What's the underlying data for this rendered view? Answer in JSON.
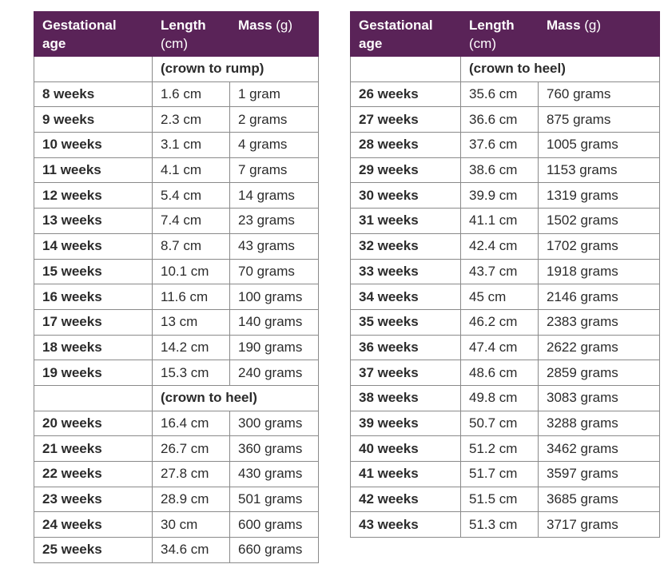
{
  "header": {
    "col1_line1": "Gestational",
    "col1_line2": "age",
    "col2_line1": "Length",
    "col2_line2": "(cm)",
    "col3_label": "Mass",
    "col3_unit": "(g)"
  },
  "left_table": {
    "sections": [
      {
        "label": "(crown to rump)",
        "rows": [
          {
            "age": "8 weeks",
            "length": "1.6 cm",
            "mass": "1 gram"
          },
          {
            "age": "9 weeks",
            "length": "2.3 cm",
            "mass": "2 grams"
          },
          {
            "age": "10 weeks",
            "length": "3.1 cm",
            "mass": "4 grams"
          },
          {
            "age": "11 weeks",
            "length": "4.1 cm",
            "mass": "7 grams"
          },
          {
            "age": "12 weeks",
            "length": "5.4 cm",
            "mass": "14 grams"
          },
          {
            "age": "13 weeks",
            "length": "7.4 cm",
            "mass": "23 grams"
          },
          {
            "age": "14 weeks",
            "length": "8.7 cm",
            "mass": "43 grams"
          },
          {
            "age": "15 weeks",
            "length": "10.1 cm",
            "mass": "70 grams"
          },
          {
            "age": "16 weeks",
            "length": "11.6 cm",
            "mass": "100 grams"
          },
          {
            "age": "17 weeks",
            "length": "13 cm",
            "mass": "140 grams"
          },
          {
            "age": "18 weeks",
            "length": "14.2 cm",
            "mass": "190 grams"
          },
          {
            "age": "19 weeks",
            "length": "15.3 cm",
            "mass": "240 grams"
          }
        ]
      },
      {
        "label": "(crown to heel)",
        "rows": [
          {
            "age": "20 weeks",
            "length": "16.4 cm",
            "mass": "300 grams"
          },
          {
            "age": "21 weeks",
            "length": "26.7 cm",
            "mass": "360 grams"
          },
          {
            "age": "22 weeks",
            "length": "27.8 cm",
            "mass": "430 grams"
          },
          {
            "age": "23 weeks",
            "length": "28.9 cm",
            "mass": "501 grams"
          },
          {
            "age": "24 weeks",
            "length": "30 cm",
            "mass": "600 grams"
          },
          {
            "age": "25 weeks",
            "length": "34.6 cm",
            "mass": "660 grams"
          }
        ]
      }
    ]
  },
  "right_table": {
    "sections": [
      {
        "label": "(crown to heel)",
        "rows": [
          {
            "age": "26 weeks",
            "length": "35.6 cm",
            "mass": "760 grams"
          },
          {
            "age": "27 weeks",
            "length": "36.6 cm",
            "mass": "875 grams"
          },
          {
            "age": "28 weeks",
            "length": "37.6 cm",
            "mass": "1005 grams"
          },
          {
            "age": "29 weeks",
            "length": "38.6 cm",
            "mass": "1153 grams"
          },
          {
            "age": "30 weeks",
            "length": "39.9 cm",
            "mass": "1319 grams"
          },
          {
            "age": "31 weeks",
            "length": "41.1 cm",
            "mass": "1502 grams"
          },
          {
            "age": "32 weeks",
            "length": "42.4 cm",
            "mass": "1702 grams"
          },
          {
            "age": "33 weeks",
            "length": "43.7 cm",
            "mass": "1918 grams"
          },
          {
            "age": "34 weeks",
            "length": "45 cm",
            "mass": "2146 grams"
          },
          {
            "age": "35 weeks",
            "length": "46.2 cm",
            "mass": "2383 grams"
          },
          {
            "age": "36 weeks",
            "length": "47.4 cm",
            "mass": "2622 grams"
          },
          {
            "age": "37 weeks",
            "length": "48.6 cm",
            "mass": "2859 grams"
          },
          {
            "age": "38 weeks",
            "length": "49.8 cm",
            "mass": "3083 grams"
          },
          {
            "age": "39 weeks",
            "length": "50.7 cm",
            "mass": "3288 grams"
          },
          {
            "age": "40 weeks",
            "length": "51.2 cm",
            "mass": "3462 grams"
          },
          {
            "age": "41 weeks",
            "length": "51.7 cm",
            "mass": "3597 grams"
          },
          {
            "age": "42 weeks",
            "length": "51.5 cm",
            "mass": "3685 grams"
          },
          {
            "age": "43 weeks",
            "length": "51.3 cm",
            "mass": "3717 grams"
          }
        ]
      }
    ]
  },
  "colors": {
    "header_bg": "#5a2358",
    "header_text": "#ffffff",
    "border": "#8a8a8a",
    "text": "#2b2b2b"
  }
}
